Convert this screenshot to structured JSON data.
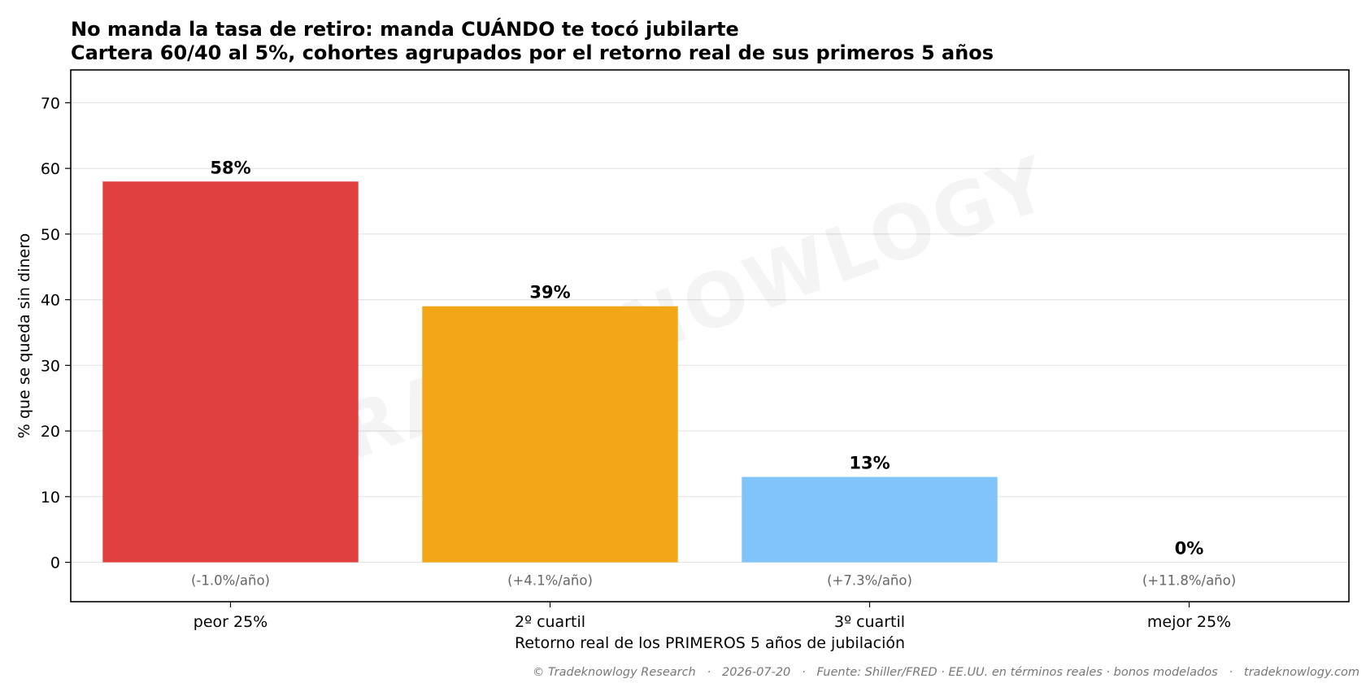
{
  "chart_data": {
    "type": "bar",
    "title": "No manda la tasa de retiro: manda CUÁNDO te tocó jubilarte",
    "subtitle": "Cartera 60/40 al 5%, cohortes agrupados por el retorno real de sus primeros 5 años",
    "xlabel": "Retorno real de los PRIMEROS 5 años de jubilación",
    "ylabel": "% que se queda sin dinero",
    "ylim": [
      -6,
      75
    ],
    "yticks": [
      0,
      10,
      20,
      30,
      40,
      50,
      60,
      70
    ],
    "grid": true,
    "categories": [
      "peor 25%",
      "2º cuartil",
      "3º cuartil",
      "mejor 25%"
    ],
    "values": [
      58,
      39,
      13,
      0
    ],
    "value_labels": [
      "58%",
      "39%",
      "13%",
      "0%"
    ],
    "notes": [
      "(-1.0%/año)",
      "(+4.1%/año)",
      "(+7.3%/año)",
      "(+11.8%/año)"
    ],
    "colors": [
      "#e04040",
      "#f3a618",
      "#80c4f9",
      "#4caf50"
    ]
  },
  "watermark": "TRADEKNOWLOGY",
  "footer": "© Tradeknowlogy Research   ·   2026-07-20   ·   Fuente: Shiller/FRED · EE.UU. en términos reales · bonos modelados   ·   tradeknowlogy.com"
}
